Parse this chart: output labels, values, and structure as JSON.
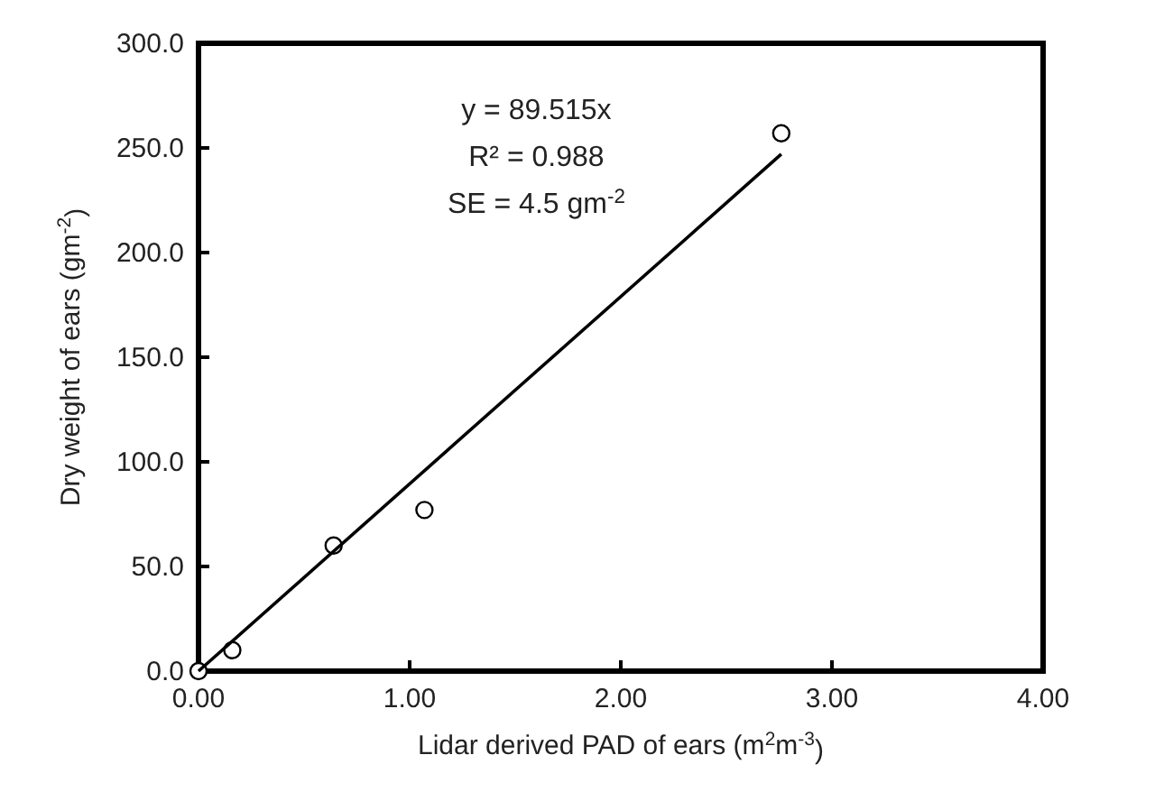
{
  "chart_data": {
    "type": "scatter",
    "xlabel": "Lidar derived PAD of ears (m$^{2}$m$^{-3}$)",
    "ylabel": "Dry weight of ears (gm$^{-2}$)",
    "xlim": [
      0,
      4
    ],
    "xticks": [
      {
        "value": 0,
        "label": "0.00"
      },
      {
        "value": 1,
        "label": "1.00"
      },
      {
        "value": 2,
        "label": "2.00"
      },
      {
        "value": 3,
        "label": "3.00"
      },
      {
        "value": 4,
        "label": "4.00"
      }
    ],
    "ylim": [
      0,
      300
    ],
    "yticks": [
      {
        "value": 0,
        "label": "0.0"
      },
      {
        "value": 50,
        "label": "50.0"
      },
      {
        "value": 100,
        "label": "100.0"
      },
      {
        "value": 150,
        "label": "150.0"
      },
      {
        "value": 200,
        "label": "200.0"
      },
      {
        "value": 250,
        "label": "250.0"
      },
      {
        "value": 300,
        "label": "300.0"
      }
    ],
    "grid": false,
    "annotations": [
      "y = 89.515x",
      "R² = 0.988",
      "SE = 4.5 gm$^{-2}$"
    ],
    "series": [
      {
        "color": "#000000",
        "marker": "circle",
        "x": [
          0,
          0.16,
          0.64,
          1.07,
          2.76
        ],
        "values": [
          0,
          10,
          60,
          77,
          257
        ]
      },
      {
        "type": "line",
        "color": "#000000",
        "line_style": "solid",
        "x": [
          0,
          2.76
        ],
        "values": [
          0,
          247
        ]
      }
    ]
  }
}
